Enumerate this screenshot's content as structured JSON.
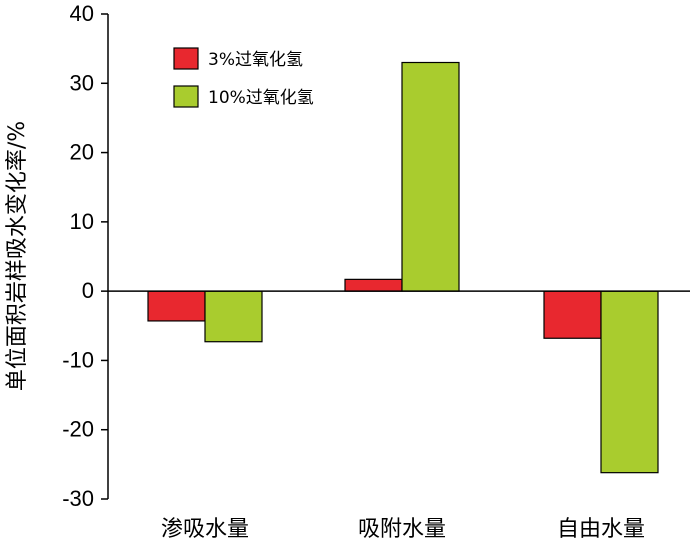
{
  "chart_data": {
    "type": "bar",
    "title": "",
    "xlabel": "",
    "ylabel": "单位面积岩样吸水变化率/%",
    "categories": [
      "渗吸水量",
      "吸附水量",
      "自由水量"
    ],
    "series": [
      {
        "name": "3%过氧化氢",
        "color": "#e8282f",
        "values": [
          -4.3,
          1.7,
          -6.8
        ]
      },
      {
        "name": "10%过氧化氢",
        "color": "#a9cc2e",
        "values": [
          -7.3,
          33.0,
          -26.2
        ]
      }
    ],
    "ylim": [
      -30,
      40
    ],
    "yticks": [
      "-30",
      "-20",
      "-10",
      "0",
      "10",
      "20",
      "30",
      "40"
    ],
    "yticks_values": [
      -30,
      -20,
      -10,
      0,
      10,
      20,
      30,
      40
    ],
    "grid": false,
    "legend_position": "top-left"
  }
}
